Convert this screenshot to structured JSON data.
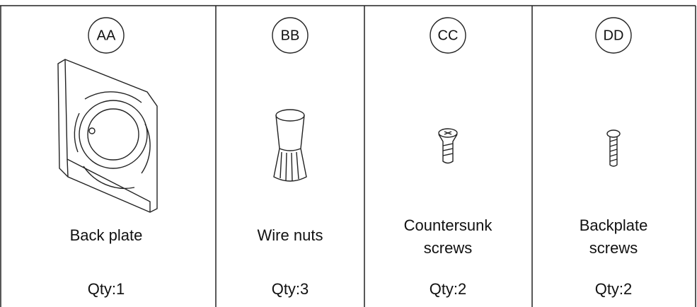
{
  "parts": [
    {
      "code": "AA",
      "name": [
        "Back plate"
      ],
      "qty": "Qty:1"
    },
    {
      "code": "BB",
      "name": [
        "Wire nuts"
      ],
      "qty": "Qty:3"
    },
    {
      "code": "CC",
      "name": [
        "Countersunk",
        "screws"
      ],
      "qty": "Qty:2"
    },
    {
      "code": "DD",
      "name": [
        "Backplate",
        "screws"
      ],
      "qty": "Qty:2"
    }
  ]
}
